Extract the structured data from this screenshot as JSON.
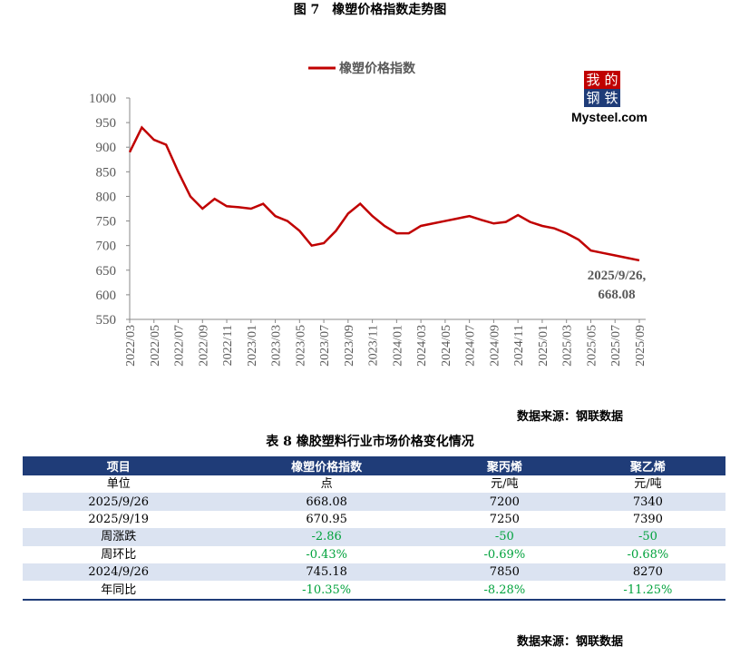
{
  "figure_title": "图 7　橡塑价格指数走势图",
  "logo": {
    "chars": [
      "我",
      "的",
      "钢",
      "铁"
    ],
    "text": "Mysteel.com"
  },
  "chart_data": {
    "type": "line",
    "categories": [
      "2022/03",
      null,
      "2022/05",
      null,
      "2022/07",
      null,
      "2022/09",
      null,
      "2022/11",
      null,
      "2023/01",
      null,
      "2023/03",
      null,
      "2023/05",
      null,
      "2023/07",
      null,
      "2023/09",
      null,
      "2023/11",
      null,
      "2024/01",
      null,
      "2024/03",
      null,
      "2024/05",
      null,
      "2024/07",
      null,
      "2024/09",
      null,
      "2024/11",
      null,
      "2025/01",
      null,
      "2025/03",
      null,
      "2025/05",
      null,
      "2025/07",
      null,
      "2025/09"
    ],
    "series": [
      {
        "name": "橡塑价格指数",
        "color": "#c00000",
        "values": [
          890,
          940,
          915,
          905,
          850,
          800,
          775,
          795,
          780,
          778,
          775,
          785,
          760,
          750,
          730,
          700,
          705,
          730,
          765,
          785,
          760,
          740,
          725,
          725,
          740,
          745,
          750,
          755,
          760,
          752,
          745,
          748,
          762,
          748,
          740,
          735,
          725,
          712,
          690,
          685,
          680,
          675,
          670
        ]
      }
    ],
    "ylim": [
      550,
      1000
    ],
    "yticks": [
      550,
      600,
      650,
      700,
      750,
      800,
      850,
      900,
      950,
      1000
    ],
    "annotation": [
      "2025/9/26,",
      "668.08"
    ]
  },
  "source_1": "数据来源：钢联数据",
  "table_title": "表 8 橡胶塑料行业市场价格变化情况",
  "table": {
    "header": [
      "项目",
      "橡塑价格指数",
      "聚丙烯",
      "聚乙烯"
    ],
    "rows": [
      [
        "单位",
        "点",
        "元/吨",
        "元/吨"
      ],
      [
        "2025/9/26",
        "668.08",
        "7200",
        "7340"
      ],
      [
        "2025/9/19",
        "670.95",
        "7250",
        "7390"
      ],
      [
        "周涨跌",
        "-2.86",
        "-50",
        "-50"
      ],
      [
        "周环比",
        "-0.43%",
        "-0.69%",
        "-0.68%"
      ],
      [
        "2024/9/26",
        "745.18",
        "7850",
        "8270"
      ],
      [
        "年同比",
        "-10.35%",
        "-8.28%",
        "-11.25%"
      ]
    ]
  },
  "source_2": "数据来源：钢联数据"
}
